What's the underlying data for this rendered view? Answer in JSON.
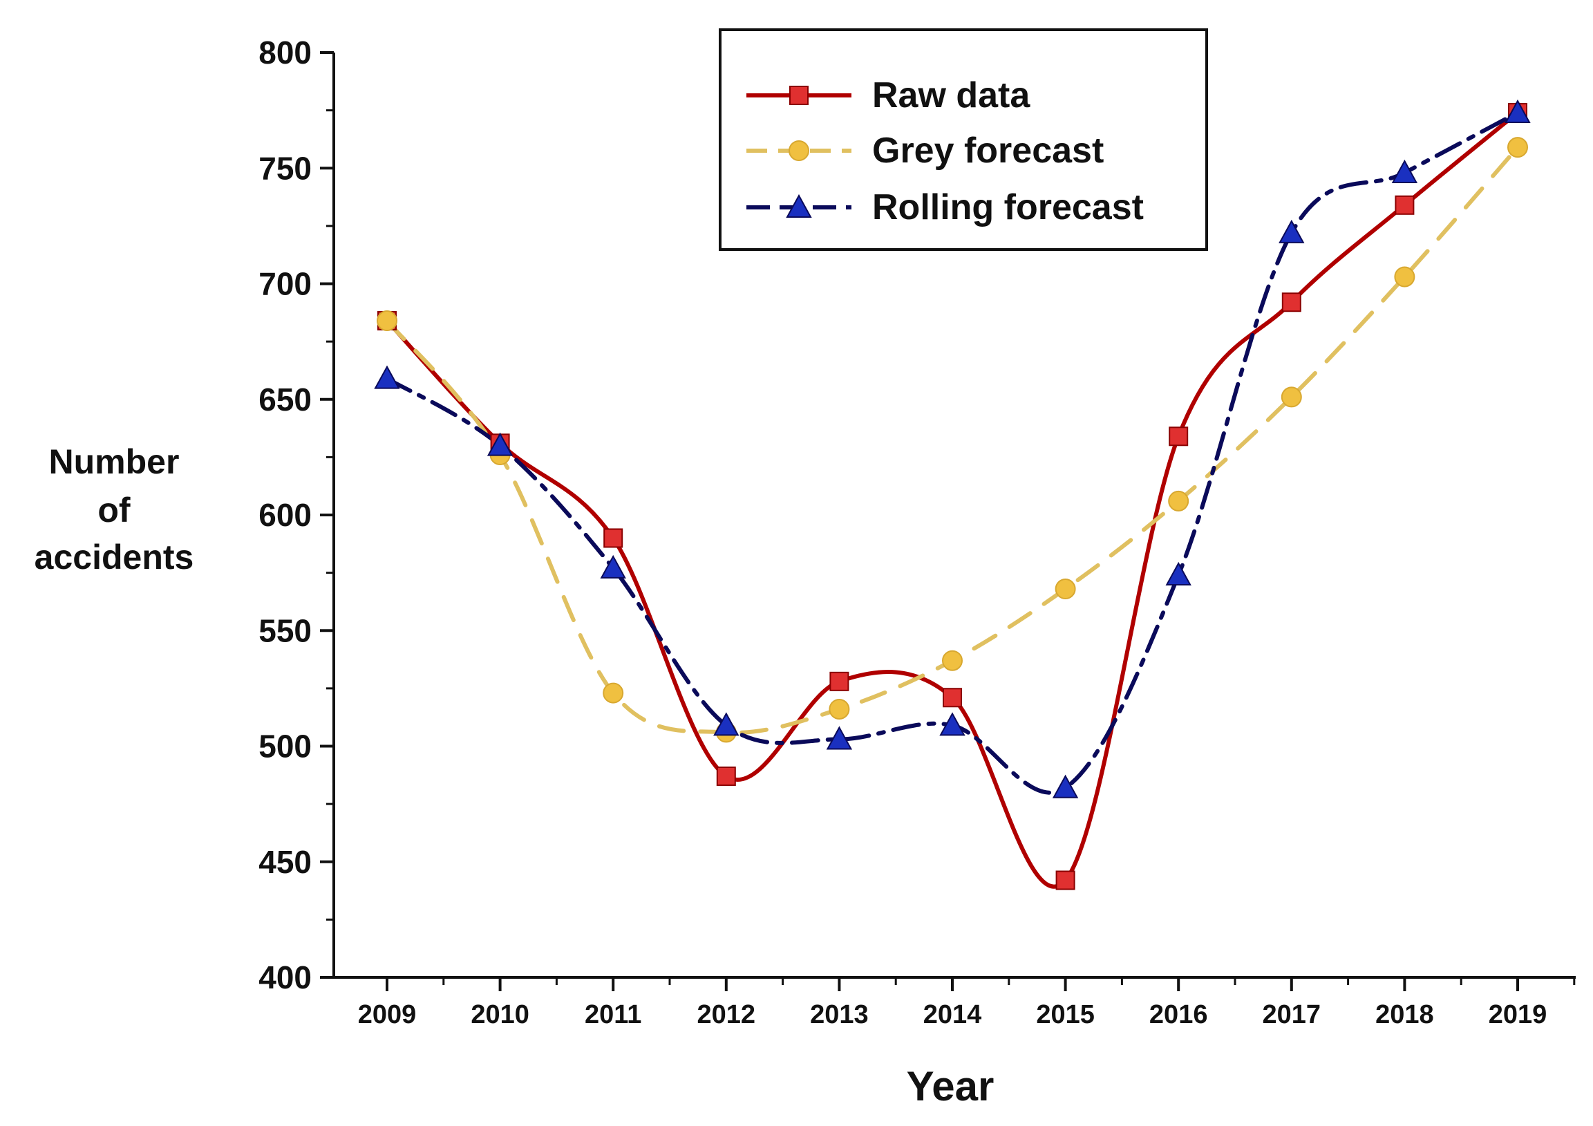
{
  "chart_data": {
    "type": "line",
    "title": "",
    "xlabel": "Year",
    "ylabel": [
      "Number",
      "of",
      "accidents"
    ],
    "categories": [
      "2009",
      "2010",
      "2011",
      "2012",
      "2013",
      "2014",
      "2015",
      "2016",
      "2017",
      "2018",
      "2019"
    ],
    "ylim": [
      400,
      800
    ],
    "yticks": [
      400,
      450,
      500,
      550,
      600,
      650,
      700,
      750,
      800
    ],
    "grid": false,
    "legend_position": "top-center",
    "series": [
      {
        "name": "Raw data",
        "color": "#b00000",
        "marker": "square",
        "marker_color": "#e03030",
        "line": "solid-smooth",
        "values": [
          684,
          631,
          590,
          487,
          528,
          521,
          442,
          634,
          692,
          734,
          774
        ]
      },
      {
        "name": "Grey forecast",
        "color": "#e0c060",
        "marker": "circle",
        "marker_color": "#f0c040",
        "line": "dashed",
        "values": [
          684,
          626,
          523,
          506,
          516,
          537,
          568,
          606,
          651,
          703,
          759
        ]
      },
      {
        "name": "Rolling forecast",
        "color": "#0a0a5a",
        "marker": "triangle",
        "marker_color": "#1a30c0",
        "line": "dashdot",
        "values": [
          659,
          630,
          577,
          509,
          503,
          509,
          482,
          574,
          722,
          748,
          774
        ]
      }
    ]
  }
}
